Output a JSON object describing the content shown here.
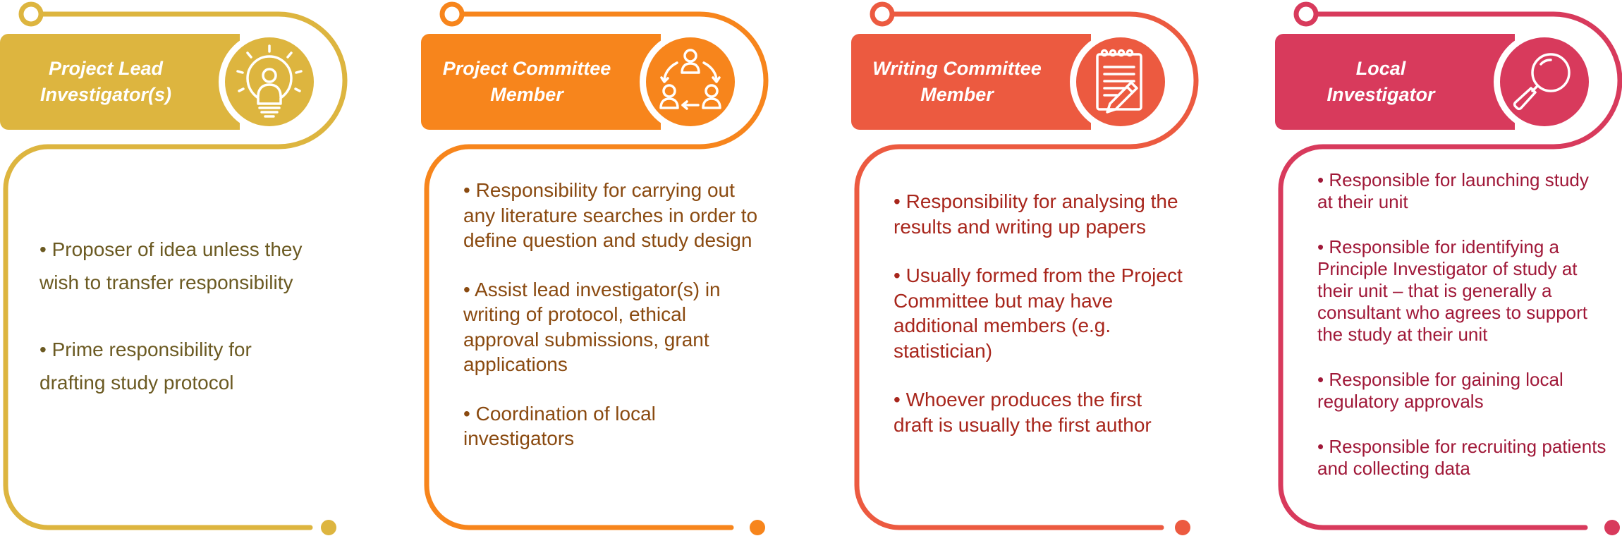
{
  "colors": {
    "card1": "#DDB53F",
    "card2": "#F7851C",
    "card3": "#EC5A40",
    "card4": "#D83A5C",
    "text1": "#6B5A22",
    "text2": "#8A4A10",
    "text3": "#A8261C",
    "text4": "#A01838"
  },
  "cards": [
    {
      "title": "Project Lead\nInvestigator(s)",
      "icon": "lightbulb-person-icon",
      "bullets": [
        "Proposer of idea unless they wish to transfer responsibility",
        "Prime responsibility for drafting study protocol"
      ]
    },
    {
      "title": "Project Committee\nMember",
      "icon": "team-cycle-icon",
      "bullets": [
        "Responsibility for carrying out any literature searches in order to define question and study design",
        "Assist lead investigator(s) in writing of protocol, ethical approval submissions, grant applications",
        "Coordination of local investigators"
      ]
    },
    {
      "title": "Writing Committee\nMember",
      "icon": "notepad-pencil-icon",
      "bullets": [
        "Responsibility for analysing the results and writing up papers",
        "Usually formed from the Project Committee but may have additional members (e.g. statistician)",
        "Whoever produces the first draft is usually the first author"
      ]
    },
    {
      "title": "Local\nInvestigator",
      "icon": "magnifier-icon",
      "bullets": [
        "Responsible for launching study at their unit",
        "Responsible for identifying a Principle Investigator of study at their unit – that is generally a consultant who agrees to support the study at their unit",
        "Responsible for gaining local regulatory approvals",
        "Responsible for recruiting patients and collecting data"
      ]
    }
  ]
}
